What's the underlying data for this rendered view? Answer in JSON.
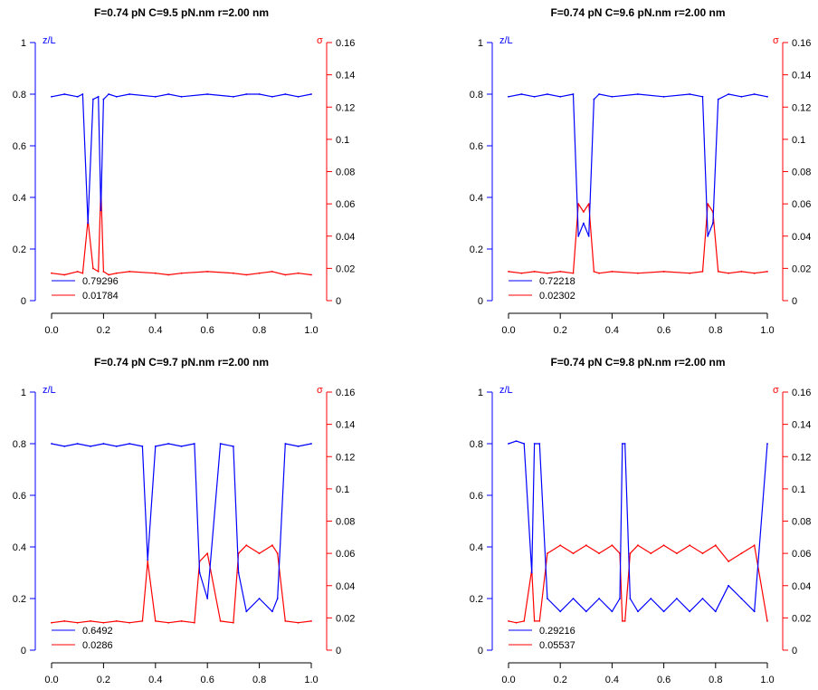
{
  "colors": {
    "zl": "#0000ff",
    "sigma": "#ff0000",
    "axis": "#000000"
  },
  "chart_data": [
    {
      "type": "line",
      "title": "F=0.74 pN C=9.5 pN.nm r=2.00 nm",
      "left_axis": {
        "label": "z/L",
        "ylim": [
          0,
          1
        ],
        "ticks": [
          "0",
          "0.2",
          "0.4",
          "0.6",
          "0.8",
          "1"
        ]
      },
      "right_axis": {
        "label": "σ",
        "ylim": [
          0,
          0.16
        ],
        "ticks": [
          "0",
          "0.02",
          "0.04",
          "0.06",
          "0.08",
          "0.1",
          "0.12",
          "0.14",
          "0.16"
        ]
      },
      "x_axis": {
        "xlim": [
          0,
          1
        ],
        "ticks": [
          "0.0",
          "0.2",
          "0.4",
          "0.6",
          "0.8",
          "1.0"
        ]
      },
      "legend": [
        "0.79296",
        "0.01784"
      ],
      "series": [
        {
          "axis": "left",
          "color": "blue",
          "x": [
            0.0,
            0.05,
            0.1,
            0.12,
            0.14,
            0.16,
            0.18,
            0.19,
            0.2,
            0.22,
            0.25,
            0.3,
            0.4,
            0.45,
            0.5,
            0.6,
            0.7,
            0.75,
            0.8,
            0.85,
            0.9,
            0.95,
            1.0
          ],
          "values": [
            0.79,
            0.8,
            0.79,
            0.8,
            0.3,
            0.78,
            0.79,
            0.35,
            0.78,
            0.8,
            0.79,
            0.8,
            0.79,
            0.8,
            0.79,
            0.8,
            0.79,
            0.8,
            0.8,
            0.79,
            0.8,
            0.79,
            0.8
          ]
        },
        {
          "axis": "right",
          "color": "red",
          "x": [
            0.0,
            0.05,
            0.1,
            0.12,
            0.14,
            0.16,
            0.18,
            0.19,
            0.2,
            0.22,
            0.25,
            0.3,
            0.4,
            0.45,
            0.5,
            0.6,
            0.7,
            0.75,
            0.8,
            0.85,
            0.9,
            0.95,
            1.0
          ],
          "values": [
            0.017,
            0.016,
            0.018,
            0.017,
            0.05,
            0.02,
            0.018,
            0.07,
            0.018,
            0.016,
            0.017,
            0.018,
            0.017,
            0.016,
            0.017,
            0.018,
            0.017,
            0.016,
            0.017,
            0.018,
            0.016,
            0.017,
            0.016
          ]
        }
      ]
    },
    {
      "type": "line",
      "title": "F=0.74 pN C=9.6 pN.nm r=2.00 nm",
      "left_axis": {
        "label": "z/L",
        "ylim": [
          0,
          1
        ],
        "ticks": [
          "0",
          "0.2",
          "0.4",
          "0.6",
          "0.8",
          "1"
        ]
      },
      "right_axis": {
        "label": "σ",
        "ylim": [
          0,
          0.16
        ],
        "ticks": [
          "0",
          "0.02",
          "0.04",
          "0.06",
          "0.08",
          "0.1",
          "0.12",
          "0.14",
          "0.16"
        ]
      },
      "x_axis": {
        "xlim": [
          0,
          1
        ],
        "ticks": [
          "0.0",
          "0.2",
          "0.4",
          "0.6",
          "0.8",
          "1.0"
        ]
      },
      "legend": [
        "0.72218",
        "0.02302"
      ],
      "series": [
        {
          "axis": "left",
          "color": "blue",
          "x": [
            0.0,
            0.05,
            0.1,
            0.15,
            0.2,
            0.25,
            0.27,
            0.29,
            0.31,
            0.33,
            0.35,
            0.4,
            0.5,
            0.6,
            0.7,
            0.75,
            0.77,
            0.79,
            0.81,
            0.85,
            0.9,
            0.95,
            1.0
          ],
          "values": [
            0.79,
            0.8,
            0.79,
            0.8,
            0.79,
            0.8,
            0.25,
            0.3,
            0.25,
            0.78,
            0.8,
            0.79,
            0.8,
            0.79,
            0.8,
            0.79,
            0.25,
            0.3,
            0.78,
            0.8,
            0.79,
            0.8,
            0.79
          ]
        },
        {
          "axis": "right",
          "color": "red",
          "x": [
            0.0,
            0.05,
            0.1,
            0.15,
            0.2,
            0.25,
            0.27,
            0.29,
            0.31,
            0.33,
            0.35,
            0.4,
            0.5,
            0.6,
            0.7,
            0.75,
            0.77,
            0.79,
            0.81,
            0.85,
            0.9,
            0.95,
            1.0
          ],
          "values": [
            0.018,
            0.017,
            0.018,
            0.017,
            0.018,
            0.017,
            0.06,
            0.055,
            0.06,
            0.018,
            0.017,
            0.018,
            0.017,
            0.018,
            0.017,
            0.018,
            0.06,
            0.055,
            0.018,
            0.017,
            0.018,
            0.017,
            0.018
          ]
        }
      ]
    },
    {
      "type": "line",
      "title": "F=0.74 pN C=9.7 pN.nm r=2.00 nm",
      "left_axis": {
        "label": "z/L",
        "ylim": [
          0,
          1
        ],
        "ticks": [
          "0",
          "0.2",
          "0.4",
          "0.6",
          "0.8",
          "1"
        ]
      },
      "right_axis": {
        "label": "σ",
        "ylim": [
          0,
          0.16
        ],
        "ticks": [
          "0",
          "0.02",
          "0.04",
          "0.06",
          "0.08",
          "0.1",
          "0.12",
          "0.14",
          "0.16"
        ]
      },
      "x_axis": {
        "xlim": [
          0,
          1
        ],
        "ticks": [
          "0.0",
          "0.2",
          "0.4",
          "0.6",
          "0.8",
          "1.0"
        ]
      },
      "legend": [
        "0.6492",
        "0.0286"
      ],
      "series": [
        {
          "axis": "left",
          "color": "blue",
          "x": [
            0.0,
            0.05,
            0.1,
            0.15,
            0.2,
            0.25,
            0.3,
            0.35,
            0.37,
            0.4,
            0.45,
            0.5,
            0.55,
            0.57,
            0.6,
            0.65,
            0.7,
            0.72,
            0.75,
            0.8,
            0.85,
            0.87,
            0.9,
            0.95,
            1.0
          ],
          "values": [
            0.8,
            0.79,
            0.8,
            0.79,
            0.8,
            0.79,
            0.8,
            0.79,
            0.35,
            0.79,
            0.8,
            0.79,
            0.8,
            0.3,
            0.2,
            0.8,
            0.79,
            0.3,
            0.15,
            0.2,
            0.15,
            0.2,
            0.8,
            0.79,
            0.8
          ]
        },
        {
          "axis": "right",
          "color": "red",
          "x": [
            0.0,
            0.05,
            0.1,
            0.15,
            0.2,
            0.25,
            0.3,
            0.35,
            0.37,
            0.4,
            0.45,
            0.5,
            0.55,
            0.57,
            0.6,
            0.65,
            0.7,
            0.72,
            0.75,
            0.8,
            0.85,
            0.87,
            0.9,
            0.95,
            1.0
          ],
          "values": [
            0.017,
            0.018,
            0.017,
            0.018,
            0.017,
            0.018,
            0.017,
            0.018,
            0.055,
            0.018,
            0.017,
            0.018,
            0.017,
            0.055,
            0.06,
            0.018,
            0.017,
            0.06,
            0.065,
            0.06,
            0.065,
            0.06,
            0.018,
            0.017,
            0.018
          ]
        }
      ]
    },
    {
      "type": "line",
      "title": "F=0.74 pN C=9.8 pN.nm r=2.00 nm",
      "left_axis": {
        "label": "z/L",
        "ylim": [
          0,
          1
        ],
        "ticks": [
          "0",
          "0.2",
          "0.4",
          "0.6",
          "0.8",
          "1"
        ]
      },
      "right_axis": {
        "label": "σ",
        "ylim": [
          0,
          0.16
        ],
        "ticks": [
          "0",
          "0.02",
          "0.04",
          "0.06",
          "0.08",
          "0.1",
          "0.12",
          "0.14",
          "0.16"
        ]
      },
      "x_axis": {
        "xlim": [
          0,
          1
        ],
        "ticks": [
          "0.0",
          "0.2",
          "0.4",
          "0.6",
          "0.8",
          "1.0"
        ]
      },
      "legend": [
        "0.29216",
        "0.05537"
      ],
      "series": [
        {
          "axis": "left",
          "color": "blue",
          "x": [
            0.0,
            0.03,
            0.06,
            0.09,
            0.1,
            0.12,
            0.15,
            0.2,
            0.25,
            0.3,
            0.35,
            0.4,
            0.43,
            0.44,
            0.45,
            0.47,
            0.5,
            0.55,
            0.6,
            0.65,
            0.7,
            0.75,
            0.8,
            0.85,
            0.9,
            0.95,
            1.0
          ],
          "values": [
            0.8,
            0.81,
            0.8,
            0.3,
            0.8,
            0.8,
            0.2,
            0.15,
            0.2,
            0.15,
            0.2,
            0.15,
            0.2,
            0.8,
            0.8,
            0.2,
            0.15,
            0.2,
            0.15,
            0.2,
            0.15,
            0.2,
            0.15,
            0.25,
            0.2,
            0.15,
            0.8
          ]
        },
        {
          "axis": "right",
          "color": "red",
          "x": [
            0.0,
            0.03,
            0.06,
            0.09,
            0.1,
            0.12,
            0.15,
            0.2,
            0.25,
            0.3,
            0.35,
            0.4,
            0.43,
            0.44,
            0.45,
            0.47,
            0.5,
            0.55,
            0.6,
            0.65,
            0.7,
            0.75,
            0.8,
            0.85,
            0.9,
            0.95,
            1.0
          ],
          "values": [
            0.018,
            0.017,
            0.018,
            0.05,
            0.018,
            0.018,
            0.06,
            0.065,
            0.06,
            0.065,
            0.06,
            0.065,
            0.06,
            0.018,
            0.018,
            0.06,
            0.065,
            0.06,
            0.065,
            0.06,
            0.065,
            0.06,
            0.065,
            0.055,
            0.06,
            0.065,
            0.018
          ]
        }
      ]
    }
  ]
}
